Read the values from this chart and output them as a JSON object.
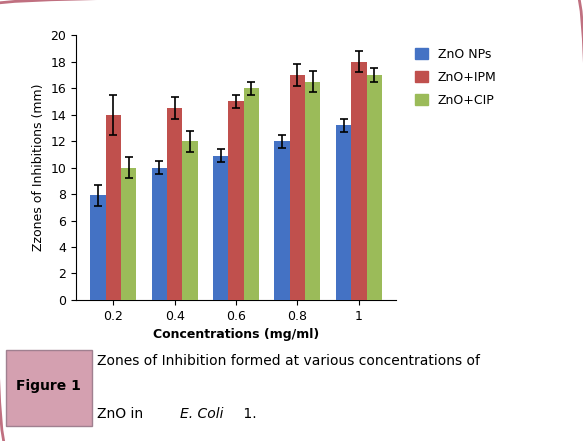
{
  "categories": [
    "0.2",
    "0.4",
    "0.6",
    "0.8",
    "1"
  ],
  "series": [
    {
      "label": "ZnO NPs",
      "color": "#4472C4",
      "values": [
        7.9,
        10.0,
        10.9,
        12.0,
        13.2
      ],
      "errors": [
        0.8,
        0.5,
        0.5,
        0.5,
        0.5
      ]
    },
    {
      "label": "ZnO+IPM",
      "color": "#C0504D",
      "values": [
        14.0,
        14.5,
        15.0,
        17.0,
        18.0
      ],
      "errors": [
        1.5,
        0.8,
        0.5,
        0.8,
        0.8
      ]
    },
    {
      "label": "ZnO+CIP",
      "color": "#9BBB59",
      "values": [
        10.0,
        12.0,
        16.0,
        16.5,
        17.0
      ],
      "errors": [
        0.8,
        0.8,
        0.5,
        0.8,
        0.5
      ]
    }
  ],
  "ylabel": "Zzones of Inhibitions (mm)",
  "xlabel": "Concentrations (mg/ml)",
  "ylim": [
    0,
    20
  ],
  "yticks": [
    0,
    2,
    4,
    6,
    8,
    10,
    12,
    14,
    16,
    18,
    20
  ],
  "bar_width": 0.25,
  "figure_label": "Figure 1",
  "line1": "Zones of Inhibition formed at various concentrations of",
  "line2_pre": "ZnO in ",
  "line2_italic": "E. Coli",
  "line2_post": " 1.",
  "outer_border_color": "#C07080",
  "figure_label_bg": "#D4A0B0",
  "background_color": "#ffffff"
}
